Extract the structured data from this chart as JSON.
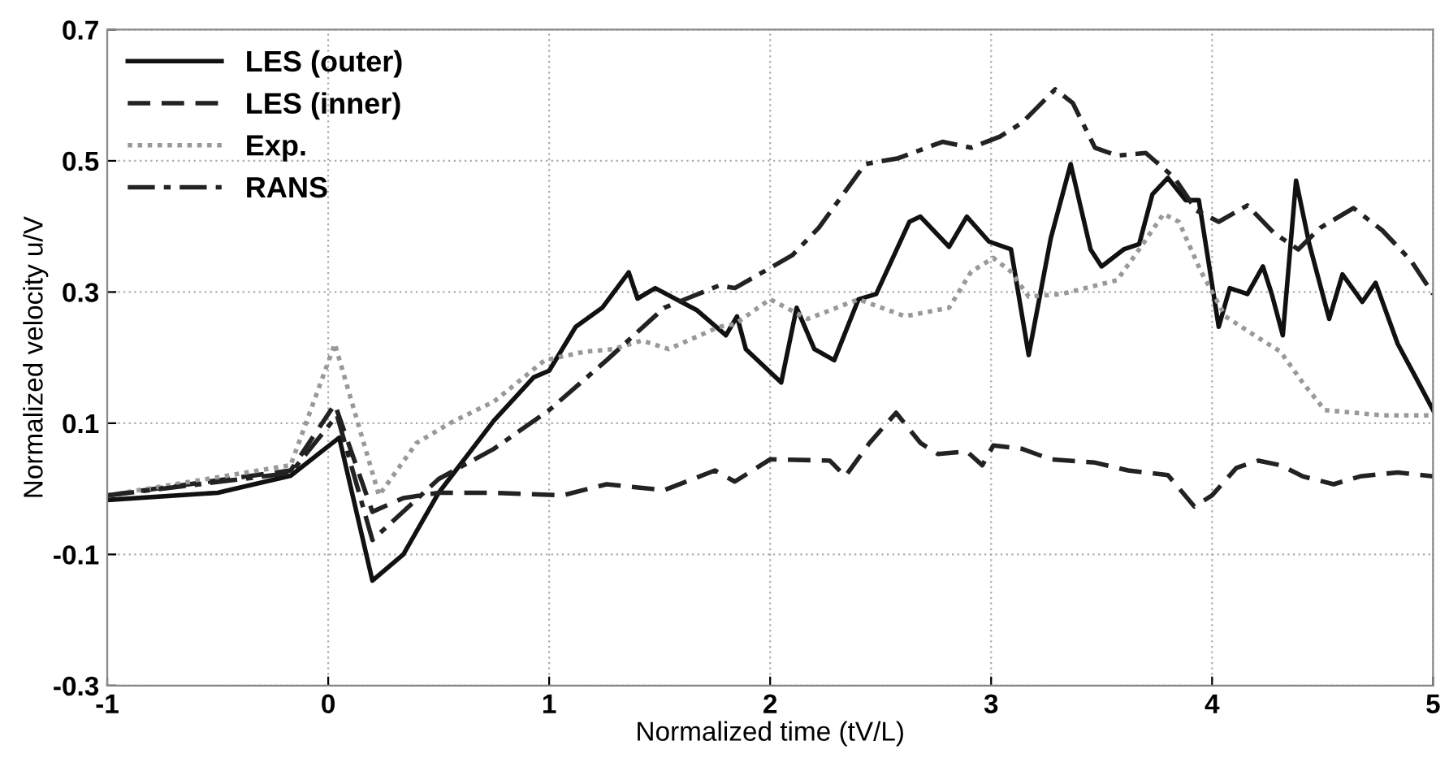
{
  "chart_data": {
    "type": "line",
    "xlabel": "Normalized time (tV/L)",
    "ylabel": "Normalized velocity u/V",
    "xlim": [
      -1,
      5
    ],
    "ylim": [
      -0.3,
      0.7
    ],
    "xticks": [
      -1,
      0,
      1,
      2,
      3,
      4,
      5
    ],
    "yticks": [
      -0.3,
      -0.1,
      0.1,
      0.3,
      0.5,
      0.7
    ],
    "grid": true,
    "legend": "top left",
    "marker": "none",
    "series": [
      {
        "name": "LES (outer)",
        "color": "#111111",
        "line_style": "solid",
        "x": [
          -1,
          -0.5,
          -0.17,
          0.05,
          0.2,
          0.34,
          0.5,
          0.75,
          0.93,
          1.0,
          1.12,
          1.24,
          1.36,
          1.4,
          1.48,
          1.67,
          1.8,
          1.85,
          1.89,
          2.05,
          2.12,
          2.2,
          2.29,
          2.4,
          2.48,
          2.63,
          2.68,
          2.81,
          2.89,
          2.99,
          3.09,
          3.17,
          3.27,
          3.36,
          3.45,
          3.5,
          3.6,
          3.67,
          3.73,
          3.8,
          3.88,
          3.94,
          4.03,
          4.08,
          4.16,
          4.23,
          4.27,
          4.32,
          4.38,
          4.44,
          4.53,
          4.59,
          4.68,
          4.74,
          4.84,
          4.92,
          5.0
        ],
        "values": [
          -0.017,
          -0.006,
          0.02,
          0.078,
          -0.14,
          -0.1,
          -0.006,
          0.104,
          0.17,
          0.18,
          0.247,
          0.276,
          0.33,
          0.29,
          0.306,
          0.272,
          0.234,
          0.263,
          0.213,
          0.162,
          0.276,
          0.213,
          0.196,
          0.289,
          0.297,
          0.407,
          0.415,
          0.369,
          0.415,
          0.377,
          0.365,
          0.204,
          0.382,
          0.495,
          0.365,
          0.339,
          0.365,
          0.373,
          0.449,
          0.474,
          0.44,
          0.44,
          0.247,
          0.306,
          0.297,
          0.339,
          0.297,
          0.234,
          0.47,
          0.373,
          0.259,
          0.327,
          0.285,
          0.314,
          0.221,
          0.171,
          0.12
        ]
      },
      {
        "name": "LES (inner)",
        "color": "#222222",
        "line_style": "dashed",
        "x": [
          -1,
          -0.17,
          0.03,
          0.2,
          0.34,
          0.5,
          0.75,
          1.06,
          1.26,
          1.52,
          1.75,
          1.84,
          2.0,
          2.27,
          2.34,
          2.45,
          2.57,
          2.68,
          2.76,
          2.89,
          2.96,
          3.01,
          3.14,
          3.27,
          3.47,
          3.62,
          3.8,
          3.92,
          4.0,
          4.11,
          4.21,
          4.31,
          4.41,
          4.55,
          4.67,
          4.84,
          5.0
        ],
        "values": [
          -0.01,
          0.028,
          0.129,
          -0.035,
          -0.014,
          -0.006,
          -0.006,
          -0.01,
          0.007,
          -0.002,
          0.028,
          0.011,
          0.045,
          0.043,
          0.019,
          0.07,
          0.116,
          0.07,
          0.053,
          0.057,
          0.036,
          0.066,
          0.061,
          0.045,
          0.04,
          0.028,
          0.021,
          -0.027,
          -0.01,
          0.032,
          0.043,
          0.036,
          0.019,
          0.007,
          0.019,
          0.025,
          0.019
        ]
      },
      {
        "name": "Exp.",
        "color": "#999999",
        "line_style": "dotted",
        "x": [
          -1,
          -0.17,
          0.03,
          0.23,
          0.4,
          0.55,
          0.75,
          0.98,
          1.16,
          1.29,
          1.42,
          1.54,
          1.77,
          1.84,
          2.0,
          2.17,
          2.4,
          2.61,
          2.81,
          2.91,
          3.01,
          3.09,
          3.17,
          3.32,
          3.57,
          3.67,
          3.78,
          3.85,
          3.95,
          4.06,
          4.21,
          4.31,
          4.41,
          4.51,
          4.77,
          5.0
        ],
        "values": [
          -0.01,
          0.036,
          0.221,
          -0.01,
          0.07,
          0.1,
          0.133,
          0.196,
          0.209,
          0.213,
          0.226,
          0.213,
          0.247,
          0.251,
          0.289,
          0.259,
          0.289,
          0.263,
          0.276,
          0.331,
          0.352,
          0.331,
          0.293,
          0.297,
          0.318,
          0.365,
          0.419,
          0.407,
          0.331,
          0.263,
          0.23,
          0.209,
          0.162,
          0.12,
          0.112,
          0.112
        ]
      },
      {
        "name": "RANS",
        "color": "#222222",
        "line_style": "dashdot",
        "x": [
          -1,
          -0.17,
          0.04,
          0.2,
          0.5,
          0.75,
          1.0,
          1.26,
          1.52,
          1.77,
          1.84,
          2.1,
          2.22,
          2.43,
          2.58,
          2.78,
          2.91,
          3.04,
          3.14,
          3.29,
          3.37,
          3.47,
          3.57,
          3.7,
          3.83,
          3.93,
          4.03,
          4.16,
          4.28,
          4.39,
          4.49,
          4.64,
          4.77,
          4.9,
          5.0
        ],
        "values": [
          -0.01,
          0.024,
          0.112,
          -0.078,
          0.015,
          0.061,
          0.12,
          0.196,
          0.276,
          0.31,
          0.306,
          0.356,
          0.398,
          0.495,
          0.504,
          0.529,
          0.52,
          0.537,
          0.558,
          0.609,
          0.588,
          0.52,
          0.508,
          0.512,
          0.474,
          0.424,
          0.407,
          0.432,
          0.39,
          0.365,
          0.398,
          0.428,
          0.394,
          0.348,
          0.297
        ]
      }
    ]
  }
}
